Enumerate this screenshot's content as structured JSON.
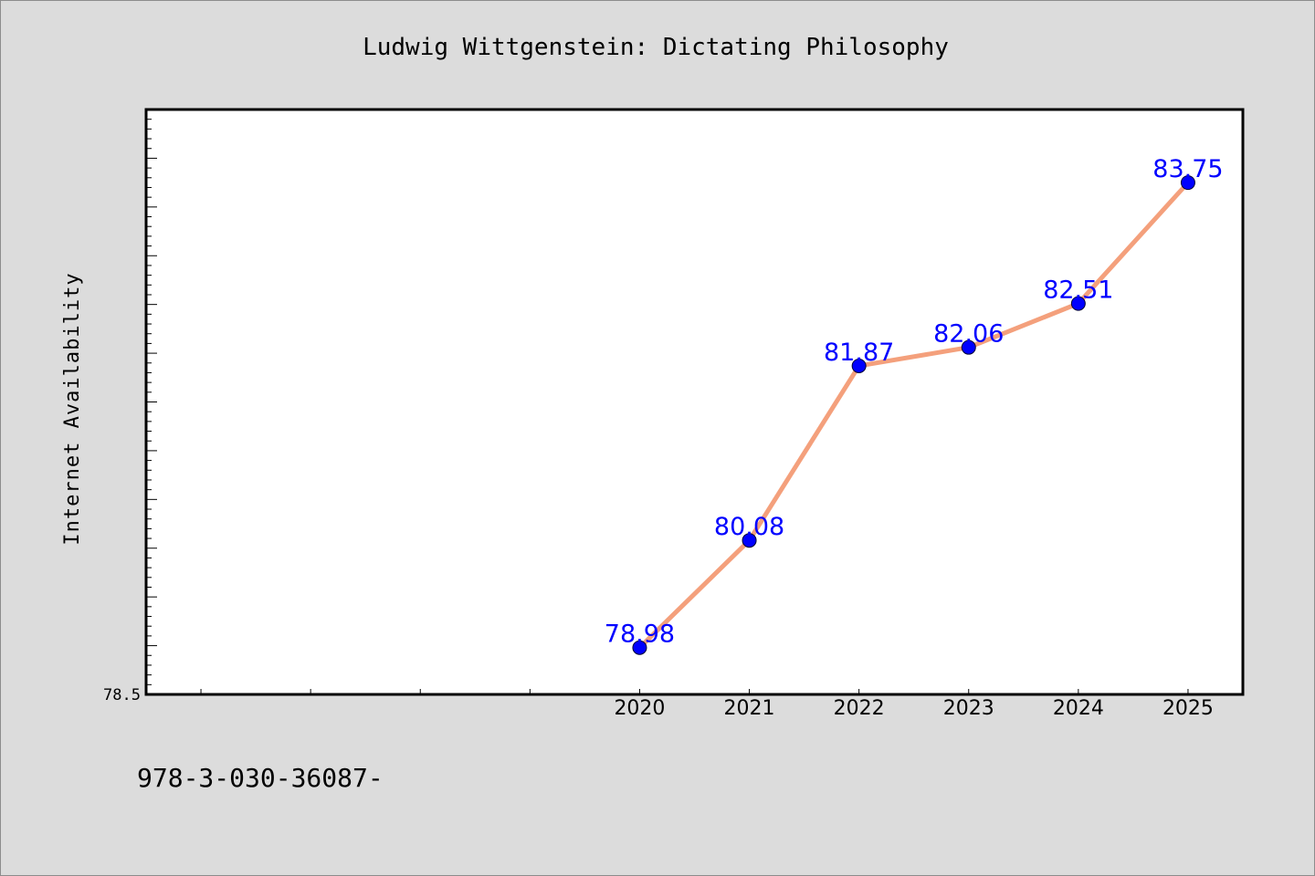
{
  "chart_data": {
    "type": "line",
    "title": "Ludwig Wittgenstein: Dictating Philosophy",
    "xlabel": "",
    "ylabel": "Internet Availability",
    "x": [
      2020,
      2021,
      2022,
      2023,
      2024,
      2025
    ],
    "x_tick_labels": [
      "2020",
      "2021",
      "2022",
      "2023",
      "2024",
      "2025"
    ],
    "y_tick_labels": [
      "78.5"
    ],
    "series": [
      {
        "values": [
          78.98,
          80.08,
          81.87,
          82.06,
          82.51,
          83.75
        ],
        "labels": [
          "78.98",
          "80.08",
          "81.87",
          "82.06",
          "82.51",
          "83.75"
        ],
        "line_color": "#f4a07c",
        "marker_color": "#0000ff",
        "label_color": "#0000ff"
      }
    ],
    "xlim": [
      2015.5,
      2025.5
    ],
    "ylim": [
      78.5,
      84.5
    ],
    "grid": false,
    "legend": "none"
  },
  "footer_text": "978-3-030-36087-",
  "colors": {
    "background": "#dcdcdc",
    "plot_background": "#ffffff",
    "axis": "#000000"
  }
}
